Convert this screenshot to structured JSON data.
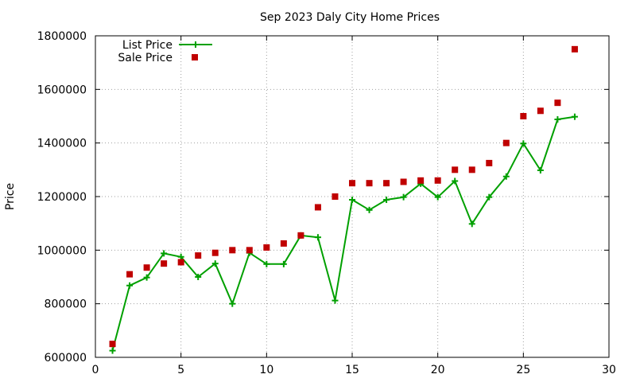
{
  "chart_data": {
    "type": "line",
    "title": "Sep 2023 Daly City Home Prices",
    "xlabel": "",
    "ylabel": "Price",
    "xlim": [
      0,
      30
    ],
    "ylim": [
      600000,
      1800000
    ],
    "x_ticks": [
      0,
      5,
      10,
      15,
      20,
      25,
      30
    ],
    "y_ticks": [
      600000,
      800000,
      1000000,
      1200000,
      1400000,
      1600000,
      1800000
    ],
    "grid": true,
    "legend_position": "top-left",
    "series": [
      {
        "name": "List Price",
        "style": "line-with-plus-markers",
        "color": "#00a000",
        "x": [
          1,
          2,
          3,
          4,
          5,
          6,
          7,
          8,
          9,
          10,
          11,
          12,
          13,
          14,
          15,
          16,
          17,
          18,
          19,
          20,
          21,
          22,
          23,
          24,
          25,
          26,
          27,
          28
        ],
        "y": [
          625000,
          868000,
          898000,
          988000,
          975000,
          900000,
          950000,
          800000,
          990000,
          948000,
          948000,
          1055000,
          1048000,
          812000,
          1188000,
          1150000,
          1188000,
          1198000,
          1248000,
          1198000,
          1258000,
          1098000,
          1198000,
          1275000,
          1398000,
          1298000,
          1488000,
          1498000
        ]
      },
      {
        "name": "Sale Price",
        "style": "square-markers",
        "color": "#c00000",
        "x": [
          1,
          2,
          3,
          4,
          5,
          6,
          7,
          8,
          9,
          10,
          11,
          12,
          13,
          14,
          15,
          16,
          17,
          18,
          19,
          20,
          21,
          22,
          23,
          24,
          25,
          26,
          27,
          28
        ],
        "y": [
          650000,
          910000,
          935000,
          950000,
          955000,
          980000,
          990000,
          1000000,
          1000000,
          1010000,
          1025000,
          1055000,
          1160000,
          1200000,
          1250000,
          1250000,
          1250000,
          1255000,
          1260000,
          1260000,
          1300000,
          1300000,
          1325000,
          1400000,
          1500000,
          1520000,
          1550000,
          1750000
        ]
      }
    ]
  }
}
